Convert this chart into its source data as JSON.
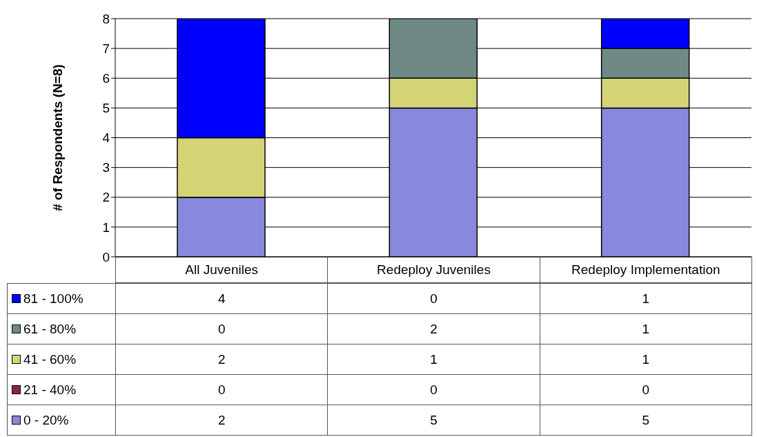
{
  "chart_data": {
    "type": "bar",
    "stacked": true,
    "ylabel": "# of Respondents (N=8)",
    "categories": [
      "All Juveniles",
      "Redeploy Juveniles",
      "Redeploy Implementation"
    ],
    "series": [
      {
        "name": "0 - 20%",
        "color": "#8888dd",
        "values": [
          2,
          5,
          5
        ]
      },
      {
        "name": "21 - 40%",
        "color": "#8b2252",
        "values": [
          0,
          0,
          0
        ]
      },
      {
        "name": "41 - 60%",
        "color": "#d4d477",
        "values": [
          2,
          1,
          1
        ]
      },
      {
        "name": "61 - 80%",
        "color": "#6f8a85",
        "values": [
          0,
          2,
          1
        ]
      },
      {
        "name": "81 - 100%",
        "color": "#0000ff",
        "values": [
          4,
          0,
          1
        ]
      }
    ],
    "ylim": [
      0,
      8
    ],
    "yticks": [
      0,
      1,
      2,
      3,
      4,
      5,
      6,
      7,
      8
    ],
    "grid": "y",
    "legend": "bottom",
    "data_labels": true
  }
}
